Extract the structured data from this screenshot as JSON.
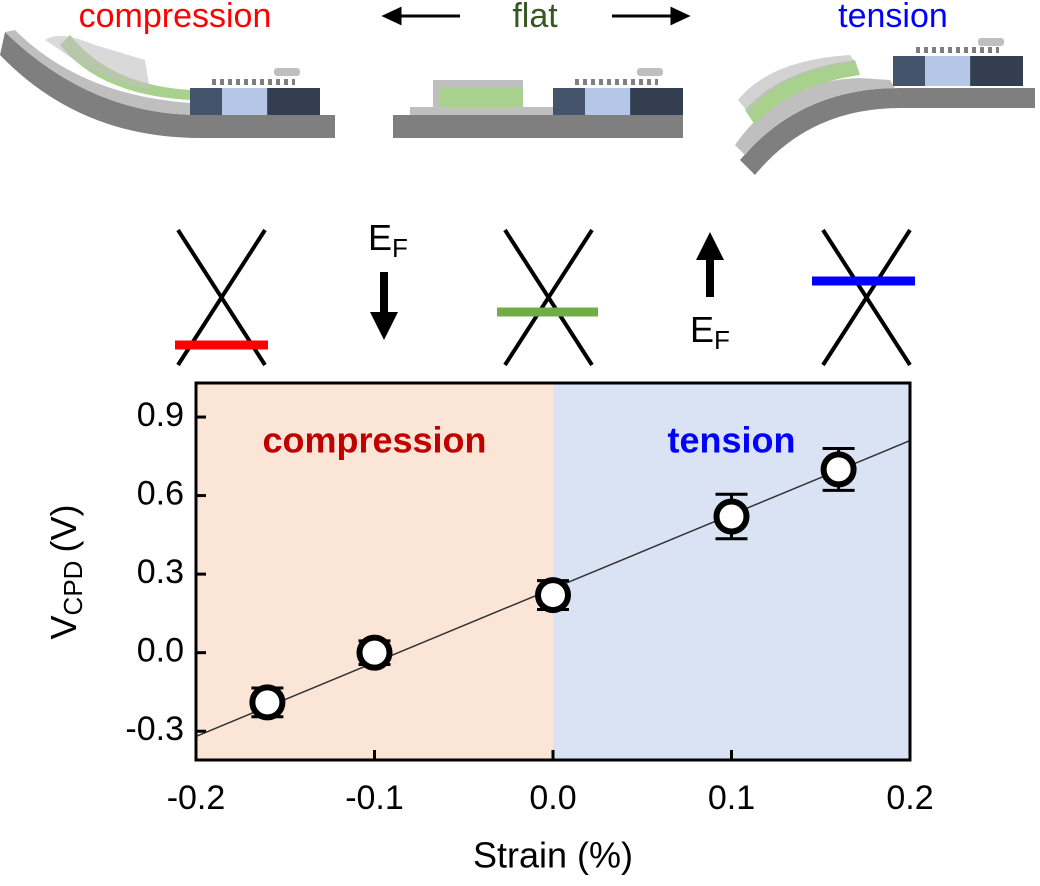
{
  "diagram": {
    "labels": [
      "compression",
      "flat",
      "tension"
    ],
    "fermi": {
      "main": "E",
      "sub": "F"
    }
  },
  "chart_data": {
    "type": "scatter",
    "x": [
      -0.16,
      -0.1,
      0,
      0.1,
      0.16
    ],
    "values": [
      -0.19,
      0.0,
      0.22,
      0.52,
      0.7
    ],
    "errors": [
      0.055,
      0.045,
      0.055,
      0.085,
      0.08
    ],
    "color": "#000000",
    "fit": {
      "x": [
        -0.2,
        0.2
      ],
      "values": [
        -0.32,
        0.81
      ],
      "color": "#333333"
    },
    "regions": [
      {
        "label": "compression",
        "x": [
          -0.2,
          0
        ],
        "color": "#fbe5d6",
        "label_color": "#c00000"
      },
      {
        "label": "tension",
        "x": [
          0,
          0.2
        ],
        "color": "#dae3f3",
        "label_color": "#0000ff"
      }
    ],
    "xlabel": "Strain (%)",
    "ylabel": {
      "main": "V",
      "sub": "CPD",
      "unit": "(V)"
    },
    "xlim": [
      -0.2,
      0.2
    ],
    "xticks": [
      -0.2,
      -0.1,
      {
        "value": 0,
        "label": "0.0"
      },
      0.1,
      0.2
    ],
    "ylim": [
      -0.41,
      1.03
    ],
    "yticks": [
      -0.3,
      {
        "value": 0,
        "label": "0.0"
      },
      0.3,
      0.6,
      0.9
    ]
  }
}
